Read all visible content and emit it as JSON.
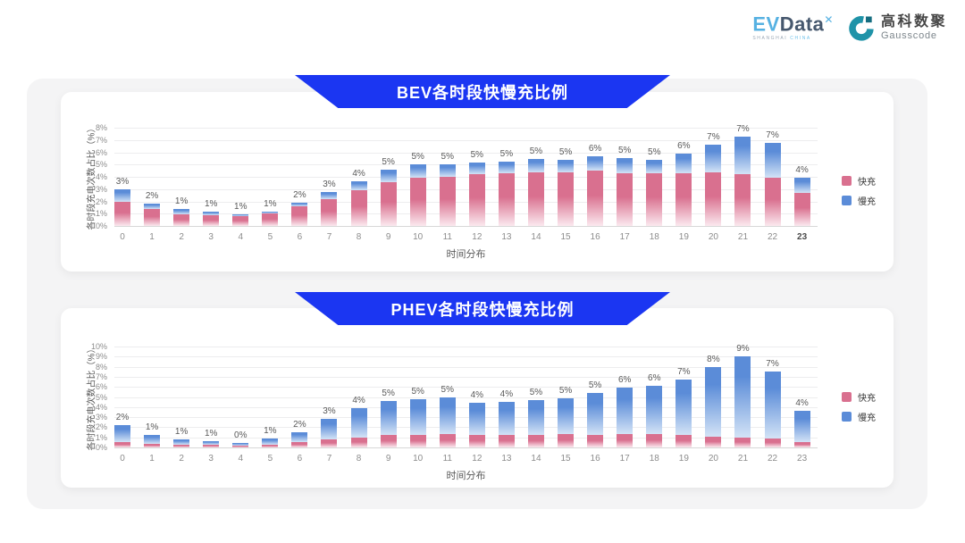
{
  "logo": {
    "evdata": {
      "prefix": "EV",
      "main": "Data",
      "sup": "✕",
      "tagline_left": "SHANGHAI",
      "tagline_right": "CHINA"
    },
    "gausscode": {
      "cn": "高科数聚",
      "en": "Gausscode"
    }
  },
  "colors": {
    "banner_blue": "#1b36f2",
    "fast_solid": "#d9708f",
    "fast_fade": "#fbe9ef",
    "slow_solid": "#5b8cd8",
    "slow_fade": "#d3e3f6",
    "gausscode_teal": "#1f93a8",
    "gausscode_dark_teal": "#156d80",
    "evdata_light_blue": "#56b1e2",
    "evdata_dark": "#46586e"
  },
  "chart_data": [
    {
      "type": "bar",
      "stacked": true,
      "title": "BEV各时段快慢充比例",
      "xlabel": "时间分布",
      "ylabel": "各时段充电次数占比（%）",
      "categories": [
        "0",
        "1",
        "2",
        "3",
        "4",
        "5",
        "6",
        "7",
        "8",
        "9",
        "10",
        "11",
        "12",
        "13",
        "14",
        "15",
        "16",
        "17",
        "18",
        "19",
        "20",
        "21",
        "22",
        "23"
      ],
      "series": [
        {
          "name": "快充",
          "values": [
            2.0,
            1.4,
            0.95,
            0.85,
            0.8,
            1.0,
            1.6,
            2.2,
            2.9,
            3.6,
            3.9,
            4.0,
            4.2,
            4.3,
            4.4,
            4.35,
            4.5,
            4.3,
            4.3,
            4.3,
            4.4,
            4.2,
            3.9,
            2.7
          ]
        },
        {
          "name": "慢充",
          "values": [
            0.95,
            0.45,
            0.4,
            0.3,
            0.15,
            0.2,
            0.3,
            0.55,
            0.75,
            1.0,
            1.1,
            1.05,
            1.0,
            0.95,
            1.05,
            1.05,
            1.15,
            1.2,
            1.1,
            1.6,
            2.25,
            3.1,
            2.85,
            1.2
          ]
        }
      ],
      "total_labels": [
        "3%",
        "2%",
        "1%",
        "1%",
        "1%",
        "1%",
        "2%",
        "3%",
        "4%",
        "5%",
        "5%",
        "5%",
        "5%",
        "5%",
        "5%",
        "5%",
        "6%",
        "5%",
        "5%",
        "6%",
        "7%",
        "7%",
        "7%",
        "4%"
      ],
      "ylim": [
        0,
        8
      ],
      "ytick_suffix": "%",
      "grid": true,
      "legend_position": "right",
      "emphasized_xtick": "23"
    },
    {
      "type": "bar",
      "stacked": true,
      "title": "PHEV各时段快慢充比例",
      "xlabel": "时间分布",
      "ylabel": "各时段充电次数占比（%）",
      "categories": [
        "0",
        "1",
        "2",
        "3",
        "4",
        "5",
        "6",
        "7",
        "8",
        "9",
        "10",
        "11",
        "12",
        "13",
        "14",
        "15",
        "16",
        "17",
        "18",
        "19",
        "20",
        "21",
        "22",
        "23"
      ],
      "series": [
        {
          "name": "快充",
          "values": [
            0.5,
            0.35,
            0.3,
            0.3,
            0.2,
            0.3,
            0.5,
            0.8,
            1.0,
            1.2,
            1.25,
            1.3,
            1.2,
            1.2,
            1.2,
            1.3,
            1.25,
            1.3,
            1.3,
            1.25,
            1.1,
            1.0,
            0.9,
            0.55
          ]
        },
        {
          "name": "慢充",
          "values": [
            1.7,
            0.85,
            0.5,
            0.3,
            0.25,
            0.55,
            1.0,
            2.0,
            2.9,
            3.4,
            3.55,
            3.7,
            3.2,
            3.3,
            3.5,
            3.6,
            4.15,
            4.6,
            4.8,
            5.45,
            6.9,
            8.0,
            6.6,
            3.05
          ]
        }
      ],
      "total_labels": [
        "2%",
        "1%",
        "1%",
        "1%",
        "0%",
        "1%",
        "2%",
        "3%",
        "4%",
        "5%",
        "5%",
        "5%",
        "4%",
        "4%",
        "5%",
        "5%",
        "5%",
        "6%",
        "6%",
        "7%",
        "8%",
        "9%",
        "7%",
        "4%"
      ],
      "ylim": [
        0,
        10
      ],
      "ytick_suffix": "%",
      "grid": true,
      "legend_position": "right",
      "emphasized_xtick": null
    }
  ]
}
